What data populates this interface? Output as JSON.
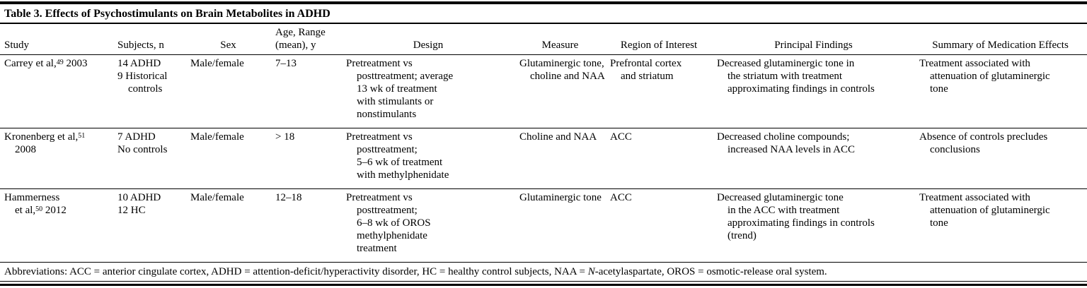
{
  "title": "Table 3. Effects of Psychostimulants on Brain Metabolites in ADHD",
  "table": {
    "headers": [
      "Study",
      "Subjects, n",
      "Sex",
      "Age, Range (mean), y",
      "Design",
      "Measure",
      "Region of Interest",
      "Principal Findings",
      "Summary of Medication Effects"
    ],
    "rows": [
      {
        "study": {
          "text": "Carrey et al,",
          "ref": "49",
          "after": " 2003"
        },
        "subjects": [
          [
            "14 ADHD"
          ],
          [
            "9 Historical",
            "controls"
          ]
        ],
        "sex": [
          [
            "Male/female"
          ]
        ],
        "age": [
          [
            "7–13"
          ]
        ],
        "design": [
          [
            "Pretreatment vs",
            "posttreatment; average",
            "13 wk of treatment",
            "with stimulants or",
            "nonstimulants"
          ]
        ],
        "measure": [
          [
            "Glutaminergic tone,",
            "choline and NAA"
          ]
        ],
        "region": [
          [
            "Prefrontal cortex",
            "and striatum"
          ]
        ],
        "findings": [
          [
            "Decreased glutaminergic tone in",
            "the striatum with treatment",
            "approximating findings in controls"
          ]
        ],
        "summary": [
          [
            "Treatment associated with",
            "attenuation of glutaminergic",
            "tone"
          ]
        ]
      },
      {
        "study": {
          "text": "Kronenberg et al,",
          "ref": "51",
          "year2": "2008"
        },
        "subjects": [
          [
            "7 ADHD"
          ],
          [
            "No controls"
          ]
        ],
        "sex": [
          [
            "Male/female"
          ]
        ],
        "age": [
          [
            "> 18"
          ]
        ],
        "design": [
          [
            "Pretreatment vs",
            "posttreatment;",
            "5–6 wk of treatment",
            "with methylphenidate"
          ]
        ],
        "measure": [
          [
            "Choline and NAA"
          ]
        ],
        "region": [
          [
            "ACC"
          ]
        ],
        "findings": [
          [
            "Decreased choline compounds;",
            "increased NAA levels in ACC"
          ]
        ],
        "summary": [
          [
            "Absence of controls precludes",
            "conclusions"
          ]
        ]
      },
      {
        "study": {
          "line1": "Hammerness",
          "pre2": "et al,",
          "ref": "50",
          "after": " 2012"
        },
        "subjects": [
          [
            "10 ADHD"
          ],
          [
            "12 HC"
          ]
        ],
        "sex": [
          [
            "Male/female"
          ]
        ],
        "age": [
          [
            "12–18"
          ]
        ],
        "design": [
          [
            "Pretreatment vs",
            "posttreatment;",
            "6–8 wk of OROS",
            "methylphenidate",
            "treatment"
          ]
        ],
        "measure": [
          [
            "Glutaminergic tone"
          ]
        ],
        "region": [
          [
            "ACC"
          ]
        ],
        "findings": [
          [
            "Decreased glutaminergic tone",
            "in the ACC with treatment",
            "approximating findings in controls",
            "(trend)"
          ]
        ],
        "summary": [
          [
            "Treatment associated with",
            "attenuation of glutaminergic",
            "tone"
          ]
        ]
      }
    ]
  },
  "footnote": {
    "pre": "Abbreviations: ACC = anterior cingulate cortex, ADHD = attention-deficit/hyperactivity disorder, HC = healthy control subjects, NAA = ",
    "italic": "N",
    "post": "-acetylaspartate, OROS = osmotic-release oral system."
  }
}
